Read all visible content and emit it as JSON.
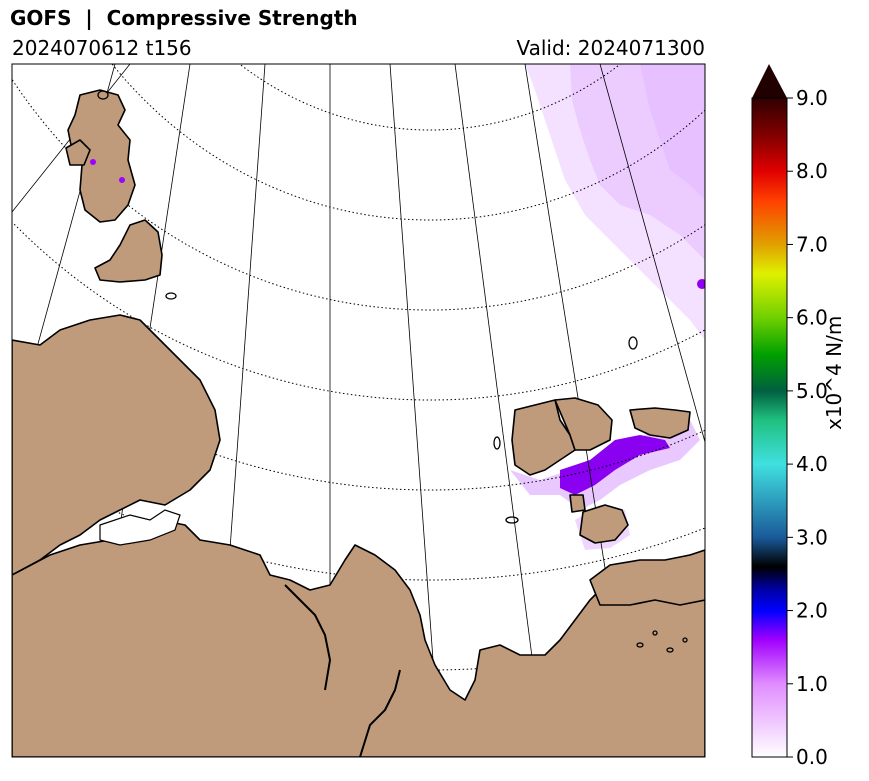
{
  "header": {
    "title": "GOFS  |  Compressive Strength",
    "run": "2024070612 t156",
    "valid": "Valid: 2024071300"
  },
  "colorbar": {
    "label": "x10^4 N/m",
    "min": 0.0,
    "max": 9.0,
    "extend": "max",
    "ticks": [
      "0.0",
      "1.0",
      "2.0",
      "3.0",
      "4.0",
      "5.0",
      "6.0",
      "7.0",
      "8.0",
      "9.0"
    ],
    "stops": [
      {
        "v": 0.0,
        "c": "#ffffff"
      },
      {
        "v": 1.0,
        "c": "#e08cff"
      },
      {
        "v": 1.6,
        "c": "#a000ff"
      },
      {
        "v": 2.0,
        "c": "#0000ff"
      },
      {
        "v": 2.3,
        "c": "#0000a0"
      },
      {
        "v": 2.6,
        "c": "#000000"
      },
      {
        "v": 3.0,
        "c": "#1a5a9a"
      },
      {
        "v": 4.0,
        "c": "#40e0e0"
      },
      {
        "v": 4.6,
        "c": "#20c080"
      },
      {
        "v": 5.0,
        "c": "#006040"
      },
      {
        "v": 5.5,
        "c": "#00a000"
      },
      {
        "v": 6.0,
        "c": "#70d000"
      },
      {
        "v": 6.6,
        "c": "#e0f000"
      },
      {
        "v": 7.0,
        "c": "#e0a000"
      },
      {
        "v": 7.6,
        "c": "#ff4000"
      },
      {
        "v": 8.0,
        "c": "#e00000"
      },
      {
        "v": 8.5,
        "c": "#800000"
      },
      {
        "v": 9.0,
        "c": "#300000"
      }
    ],
    "extend_color": "#200000"
  },
  "colors": {
    "land": "#bf9b7c",
    "coast": "#000000",
    "ice_low": "#f3dcff",
    "ice_mid": "#e6c2ff",
    "ice_high": "#a400ff",
    "ice_core": "#7000e0"
  }
}
